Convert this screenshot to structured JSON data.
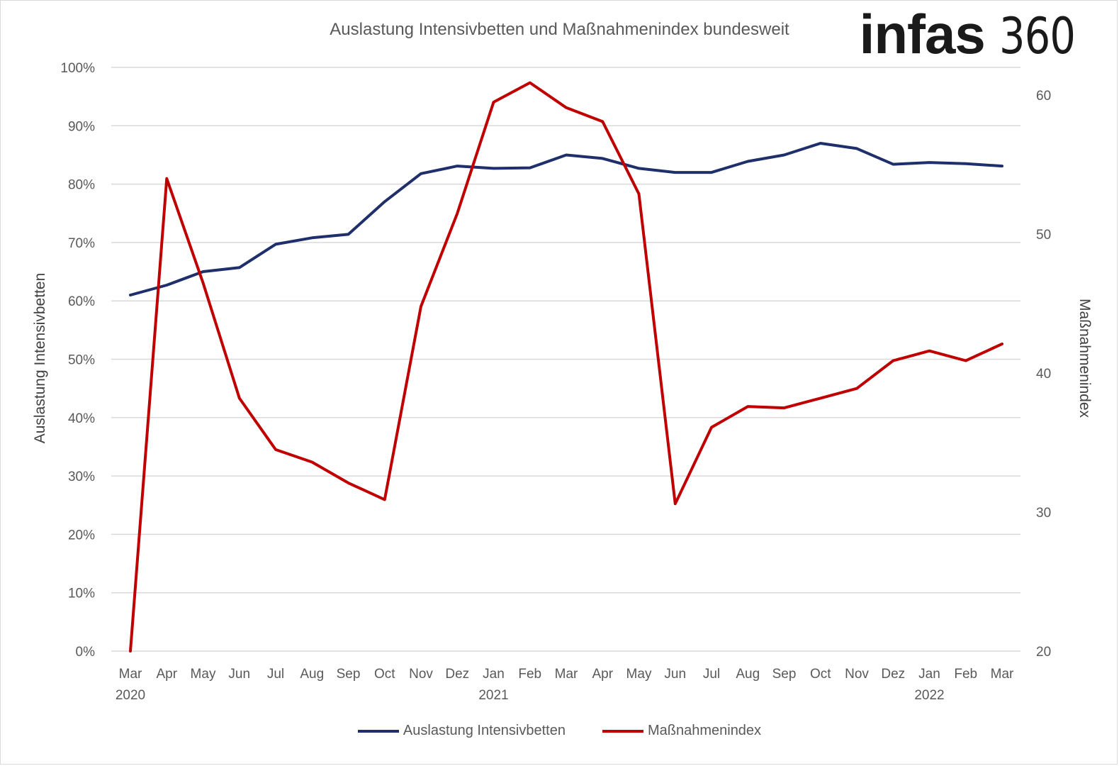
{
  "header": {
    "title": "Auslastung Intensivbetten und Maßnahmenindex bundesweit",
    "logo_brand": "infas",
    "logo_number": "360"
  },
  "chart_data": {
    "type": "line",
    "title": "Auslastung Intensivbetten und Maßnahmenindex bundesweit",
    "categories": [
      "Mar",
      "Apr",
      "May",
      "Jun",
      "Jul",
      "Aug",
      "Sep",
      "Oct",
      "Nov",
      "Dez",
      "Jan",
      "Feb",
      "Mar",
      "Apr",
      "May",
      "Jun",
      "Jul",
      "Aug",
      "Sep",
      "Oct",
      "Nov",
      "Dez",
      "Jan",
      "Feb",
      "Mar"
    ],
    "year_labels": [
      {
        "index": 0,
        "label": "2020"
      },
      {
        "index": 10,
        "label": "2021"
      },
      {
        "index": 22,
        "label": "2022"
      }
    ],
    "y_left": {
      "label": "Auslastung Intensivbetten",
      "min": 0,
      "max": 1,
      "ticks": [
        "0%",
        "10%",
        "20%",
        "30%",
        "40%",
        "50%",
        "60%",
        "70%",
        "80%",
        "90%",
        "100%"
      ]
    },
    "y_right": {
      "label": "Maßnahmenindex",
      "min": 20,
      "max": 62,
      "ticks": [
        "20",
        "30",
        "40",
        "50",
        "60"
      ]
    },
    "grid": true,
    "legend_position": "bottom",
    "series": [
      {
        "name": "Auslastung Intensivbetten",
        "axis": "left",
        "color": "#1f2f6b",
        "values": [
          0.61,
          0.627,
          0.65,
          0.657,
          0.697,
          0.708,
          0.714,
          0.77,
          0.818,
          0.831,
          0.827,
          0.828,
          0.85,
          0.844,
          0.827,
          0.82,
          0.82,
          0.839,
          0.85,
          0.87,
          0.861,
          0.834,
          0.837,
          0.835,
          0.831
        ]
      },
      {
        "name": "Maßnahmenindex",
        "axis": "right",
        "color": "#c00000",
        "values": [
          20,
          54,
          46.5,
          38.2,
          34.5,
          33.6,
          32.1,
          30.9,
          44.8,
          51.5,
          59.5,
          60.9,
          59.1,
          58.1,
          52.9,
          30.6,
          36.1,
          37.6,
          37.5,
          38.2,
          38.9,
          40.9,
          41.6,
          40.9,
          42.1
        ]
      }
    ]
  }
}
